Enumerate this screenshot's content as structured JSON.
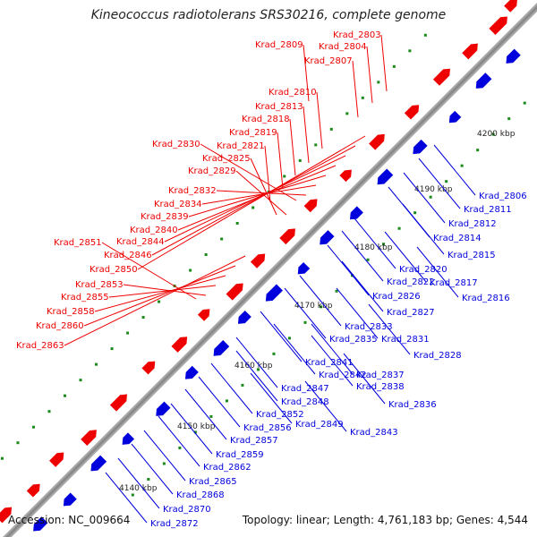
{
  "title": "Kineococcus radiotolerans SRS30216, complete genome",
  "accession": "Accession: NC_009664",
  "summary": "Topology: linear; Length: 4,761,183 bp; Genes: 4,544",
  "colors": {
    "forward": "#ee0000",
    "reverse": "#0000dd",
    "axis": "#8a8a8a",
    "tick": "#1a8a1a"
  },
  "kbp_ticks": [
    "4140 kbp",
    "4150 kbp",
    "4160 kbp",
    "4170 kbp",
    "4180 kbp",
    "4190 kbp",
    "4200 kbp"
  ],
  "forward_labels": [
    "Krad_2803",
    "Krad_2804",
    "Krad_2807",
    "Krad_2809",
    "Krad_2810",
    "Krad_2813",
    "Krad_2818",
    "Krad_2819",
    "Krad_2821",
    "Krad_2825",
    "Krad_2829",
    "Krad_2830",
    "Krad_2832",
    "Krad_2834",
    "Krad_2839",
    "Krad_2840",
    "Krad_2844",
    "Krad_2846",
    "Krad_2850",
    "Krad_2851",
    "Krad_2853",
    "Krad_2855",
    "Krad_2858",
    "Krad_2860",
    "Krad_2863"
  ],
  "reverse_labels": [
    "Krad_2806",
    "Krad_2811",
    "Krad_2812",
    "Krad_2814",
    "Krad_2815",
    "Krad_2816",
    "Krad_2817",
    "Krad_2820",
    "Krad_2822",
    "Krad_2826",
    "Krad_2827",
    "Krad_2828",
    "Krad_2831",
    "Krad_2833",
    "Krad_2835",
    "Krad_2836",
    "Krad_2837",
    "Krad_2838",
    "Krad_2841",
    "Krad_2842",
    "Krad_2843",
    "Krad_2847",
    "Krad_2848",
    "Krad_2849",
    "Krad_2852",
    "Krad_2856",
    "Krad_2857",
    "Krad_2859",
    "Krad_2862",
    "Krad_2865",
    "Krad_2868",
    "Krad_2870",
    "Krad_2872"
  ]
}
